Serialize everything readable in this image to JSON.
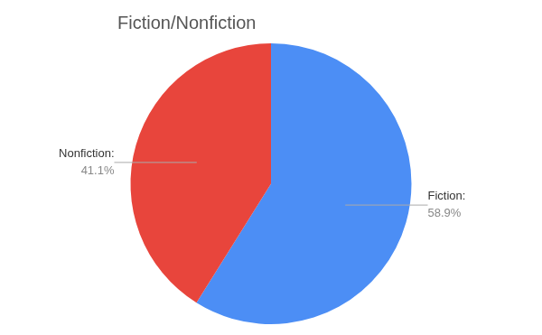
{
  "chart_data": {
    "type": "pie",
    "title": "Fiction/Nonfiction",
    "categories": [
      "Fiction:",
      "Nonfiction:"
    ],
    "values": [
      58.9,
      41.1
    ],
    "value_labels": [
      "58.9%",
      "41.1%"
    ],
    "colors": [
      "#4C8EF5",
      "#E8453C"
    ],
    "data_labels": true
  }
}
